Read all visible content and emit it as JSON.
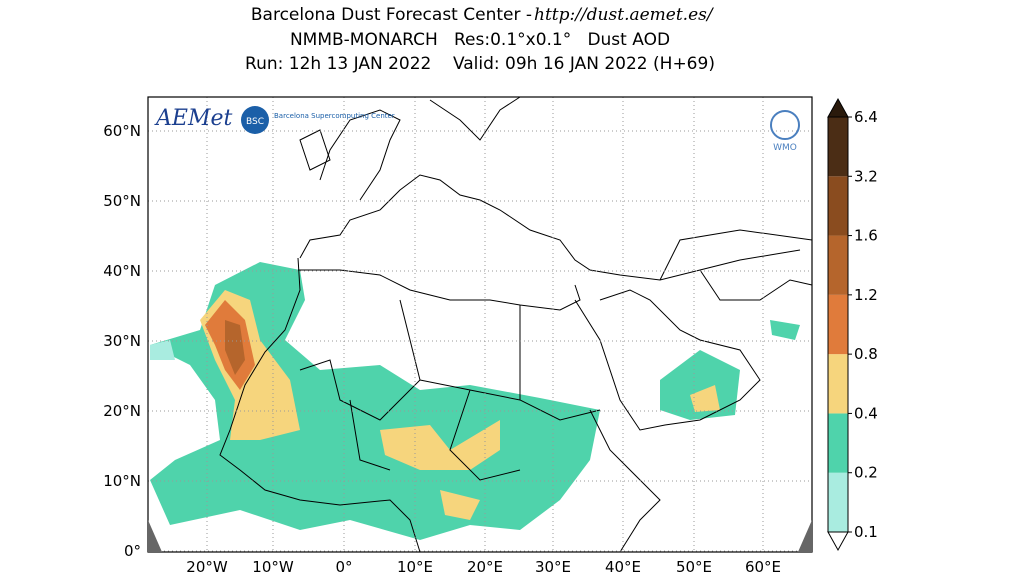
{
  "header": {
    "title": "Barcelona Dust Forecast Center - ",
    "url": "http://dust.aemet.es/",
    "line2": "NMMB-MONARCH   Res:0.1°x0.1°   Dust AOD",
    "line3": "Run: 12h 13 JAN 2022    Valid: 09h 16 JAN 2022 (H+69)"
  },
  "map": {
    "lat_labels": [
      "60°N",
      "50°N",
      "40°N",
      "30°N",
      "20°N",
      "10°N",
      "0°"
    ],
    "lon_labels": [
      "20°W",
      "10°W",
      "0°",
      "10°E",
      "20°E",
      "30°E",
      "40°E",
      "50°E",
      "60°E"
    ]
  },
  "logos": {
    "aemet": "AEMet",
    "bsc": "BSC",
    "bsc_name": "Barcelona Supercomputing Center",
    "wmo": "WMO"
  },
  "colorbar": {
    "levels": [
      0.1,
      0.2,
      0.4,
      0.8,
      1.2,
      1.6,
      3.2,
      6.4
    ],
    "colors": [
      "#a9ece0",
      "#4fd3ab",
      "#f6d57d",
      "#e07b3b",
      "#b5652c",
      "#8a4c1f",
      "#4b2d15"
    ]
  }
}
